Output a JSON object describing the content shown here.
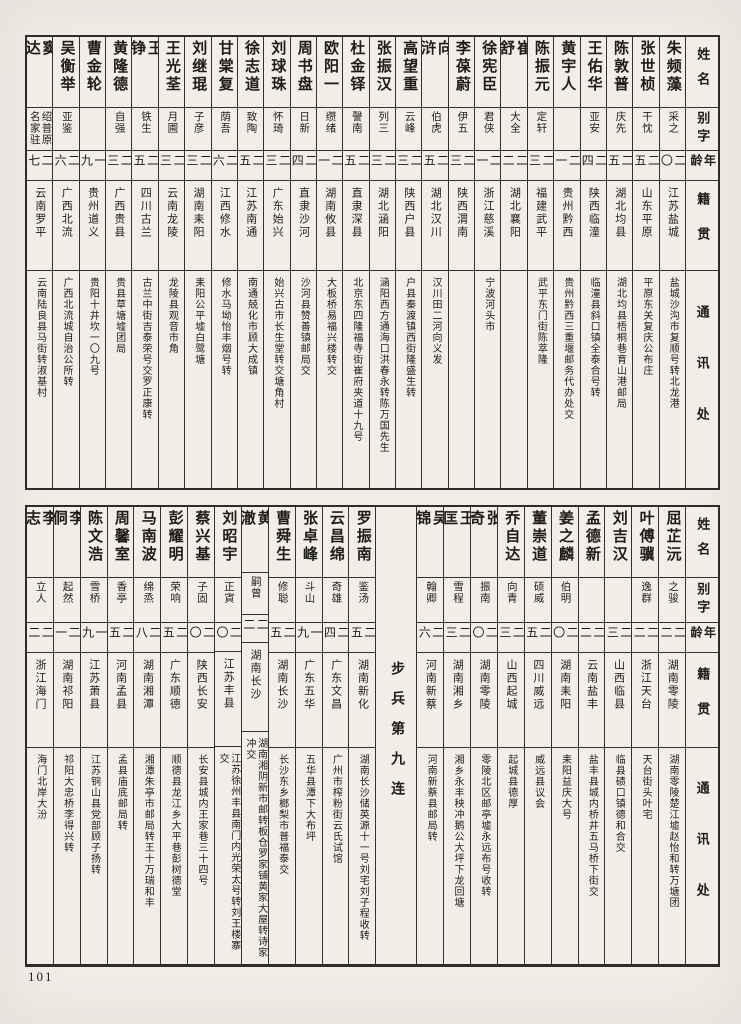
{
  "page": {
    "number": "101"
  },
  "headers": {
    "name": "姓名",
    "courtesy": "别字",
    "age": "年龄",
    "origin": "籍贯",
    "contact": "通讯处"
  },
  "tables": [
    {
      "id": "table-top",
      "entries": [
        {
          "name": "朱频藻",
          "courtesy": "采之",
          "age": "二〇",
          "origin": "江苏盐城",
          "contact": "盐城沙沟市复顺号转北龙港"
        },
        {
          "name": "张世桢",
          "courtesy": "干忱",
          "age": "二五",
          "origin": "山东平原",
          "contact": "平原东关复庆公布庄"
        },
        {
          "name": "陈敦普",
          "courtesy": "庆先",
          "age": "二五",
          "origin": "湖北均县",
          "contact": "湖北均县梧桐巷育山港邮局"
        },
        {
          "name": "王佑华",
          "courtesy": "亚安",
          "age": "二四",
          "origin": "陕西临潼",
          "contact": "临潼县斜口镇全泰合号转"
        },
        {
          "name": "黄宇人",
          "courtesy": "",
          "age": "二一",
          "origin": "贵州黔西",
          "contact": "贵州黔西三重堰邮务代办处交"
        },
        {
          "name": "陈振元",
          "courtesy": "定轩",
          "age": "二三",
          "origin": "福建武平",
          "contact": "武平东门街陈萃隆"
        },
        {
          "name": "崔舒",
          "courtesy": "大全",
          "age": "二二",
          "origin": "湖北襄阳",
          "contact": ""
        },
        {
          "name": "徐宪臣",
          "courtesy": "君侠",
          "age": "二一",
          "origin": "浙江慈溪",
          "contact": "宁波河头市"
        },
        {
          "name": "李葆蔚",
          "courtesy": "伊五",
          "age": "二三",
          "origin": "陕西渭南",
          "contact": ""
        },
        {
          "name": "向浒",
          "courtesy": "伯虎",
          "age": "二五",
          "origin": "湖北汉川",
          "contact": "汉川田二河向义发"
        },
        {
          "name": "高望重",
          "courtesy": "云峰",
          "age": "二三",
          "origin": "陕西户县",
          "contact": "户县秦渡镇西街隆盛生转"
        },
        {
          "name": "张振汉",
          "courtesy": "列三",
          "age": "二三",
          "origin": "湖北涵阳",
          "contact": "涵阳西方通海口洪春永转陈万国先生"
        },
        {
          "name": "杜金铎",
          "courtesy": "謦南",
          "age": "二五",
          "origin": "直隶深县",
          "contact": "北京东四隆福寺街崔府夹道十九号"
        },
        {
          "name": "欧阳一",
          "courtesy": "缵绪",
          "age": "二一",
          "origin": "湖南攸县",
          "contact": "大板桥易福兴楼转交"
        },
        {
          "name": "周书盘",
          "courtesy": "日新",
          "age": "二四",
          "origin": "直隶沙河",
          "contact": "沙河县赞善镇邮局交"
        },
        {
          "name": "刘球珠",
          "courtesy": "怀琦",
          "age": "二三",
          "origin": "广东始兴",
          "contact": "始兴古市长生堂转交塘角村"
        },
        {
          "name": "徐志道",
          "courtesy": "致陶",
          "age": "二五",
          "origin": "江苏南通",
          "contact": "南通兢化市顾大成镇"
        },
        {
          "name": "甘棠复",
          "courtesy": "荫吾",
          "age": "二六",
          "origin": "江西修水",
          "contact": "修水马坳怡丰烟号转"
        },
        {
          "name": "刘继琨",
          "courtesy": "子彦",
          "age": "二三",
          "origin": "湖南耒阳",
          "contact": "耒阳公平墟白鹭塘"
        },
        {
          "name": "王光荃",
          "courtesy": "月圃",
          "age": "二三",
          "origin": "云南龙陵",
          "contact": "龙陵县观音市角"
        },
        {
          "name": "王铮",
          "courtesy": "铁生",
          "age": "二五",
          "origin": "四川古兰",
          "contact": "古兰中街吉泰荣号交罗正康转"
        },
        {
          "name": "黄隆德",
          "courtesy": "自强",
          "age": "二三",
          "origin": "广西贵县",
          "contact": "贵县草塘墟团局"
        },
        {
          "name": "曹金轮",
          "courtesy": "",
          "age": "一九",
          "origin": "贵州道义",
          "contact": "贵阳十井坎一〇九号"
        },
        {
          "name": "吴衡举",
          "courtesy": "亚鉴",
          "age": "二六",
          "origin": "广西北流",
          "contact": "广西北流城自治公所转"
        },
        {
          "name": "窦达",
          "courtesy": "绍普原名家驻",
          "age": "二七",
          "origin": "云南罗平",
          "contact": "云南陆良县马街转淑基村"
        }
      ]
    },
    {
      "id": "table-bottom",
      "entries": [
        {
          "name": "屈芷沅",
          "courtesy": "之骏",
          "age": "二二",
          "origin": "湖南零陵",
          "contact": "湖南零陵楚江墟赵怡和转万塘团"
        },
        {
          "name": "叶傅骥",
          "courtesy": "逸群",
          "age": "二二",
          "origin": "浙江天台",
          "contact": "天台街头叶宅"
        },
        {
          "name": "刘吉汉",
          "courtesy": "",
          "age": "二三",
          "origin": "山西临县",
          "contact": "临县碛口镇德和合交"
        },
        {
          "name": "孟德新",
          "courtesy": "",
          "age": "二二",
          "origin": "云南盐丰",
          "contact": "盐丰县城内桥井五马桥下街交"
        },
        {
          "name": "姜之麟",
          "courtesy": "伯明",
          "age": "二〇",
          "origin": "湖南耒阳",
          "contact": "耒阳益庆大号"
        },
        {
          "name": "董崇道",
          "courtesy": "硕威",
          "age": "二五",
          "origin": "四川威远",
          "contact": "威远县议会"
        },
        {
          "name": "乔自达",
          "courtesy": "向青",
          "age": "二三",
          "origin": "山西起城",
          "contact": "起城县德厚"
        },
        {
          "name": "张奇",
          "courtesy": "振南",
          "age": "二〇",
          "origin": "湖南零陵",
          "contact": "零陵北区邮亭墟永远布号收转"
        },
        {
          "name": "王匡",
          "courtesy": "雪程",
          "age": "二三",
          "origin": "湖南湘乡",
          "contact": "湘乡永丰秧冲鹅公大坪下龙回塘"
        },
        {
          "name": "吴锦",
          "courtesy": "翰卿",
          "age": "二六",
          "origin": "河南新蔡",
          "contact": "河南新蔡县邮局转"
        },
        {
          "section": "步兵第九连"
        },
        {
          "name": "罗振南",
          "courtesy": "鉴汤",
          "age": "二五",
          "origin": "湖南新化",
          "contact": "湖南长沙储英源十一号刘宅刘子程收转"
        },
        {
          "name": "云昌绵",
          "courtesy": "奇雄",
          "age": "二四",
          "origin": "广东文昌",
          "contact": "广州市榨粉街云氏试馆"
        },
        {
          "name": "张卓峰",
          "courtesy": "斗山",
          "age": "一九",
          "origin": "广东五华",
          "contact": "五华县潭下大布坪"
        },
        {
          "name": "曹舜生",
          "courtesy": "修聪",
          "age": "二五",
          "origin": "湖南长沙",
          "contact": "长沙东乡榔梨市普福泰交"
        },
        {
          "name": "黄澈",
          "courtesy": "嗣曾",
          "age": "二二",
          "origin": "湖南长沙",
          "contact": "湖南湘阴新市邮转板仓罗家铺黄家大屋转诗家冲交"
        },
        {
          "name": "刘昭宇",
          "courtesy": "正寊",
          "age": "二〇",
          "origin": "江苏丰县",
          "contact": "江苏徐州丰县南门内光荣太号转刘王楼寨交"
        },
        {
          "name": "蔡兴基",
          "courtesy": "子固",
          "age": "二〇",
          "origin": "陕西长安",
          "contact": "长安县城内王家巷三十四号"
        },
        {
          "name": "彭耀明",
          "courtesy": "荣响",
          "age": "二五",
          "origin": "广东顺德",
          "contact": "顺德县龙江乡大平巷彭树德堂"
        },
        {
          "name": "马南波",
          "courtesy": "绵烝",
          "age": "二八",
          "origin": "湖南湘潭",
          "contact": "湘潭朱亭市邮局转王十万瑞和丰"
        },
        {
          "name": "周馨室",
          "courtesy": "香亭",
          "age": "二五",
          "origin": "河南孟县",
          "contact": "孟县庙底邮局转"
        },
        {
          "name": "陈文浩",
          "courtesy": "雪桥",
          "age": "一九",
          "origin": "江苏萧县",
          "contact": "江苏铜山县党部顾子扬转"
        },
        {
          "name": "李侗",
          "courtesy": "起然",
          "age": "二一",
          "origin": "湖南祁阳",
          "contact": "祁阳大忠桥李得兴转"
        },
        {
          "name": "李志",
          "courtesy": "立人",
          "age": "二二",
          "origin": "浙江海门",
          "contact": "海门北岸大汾"
        }
      ]
    }
  ]
}
